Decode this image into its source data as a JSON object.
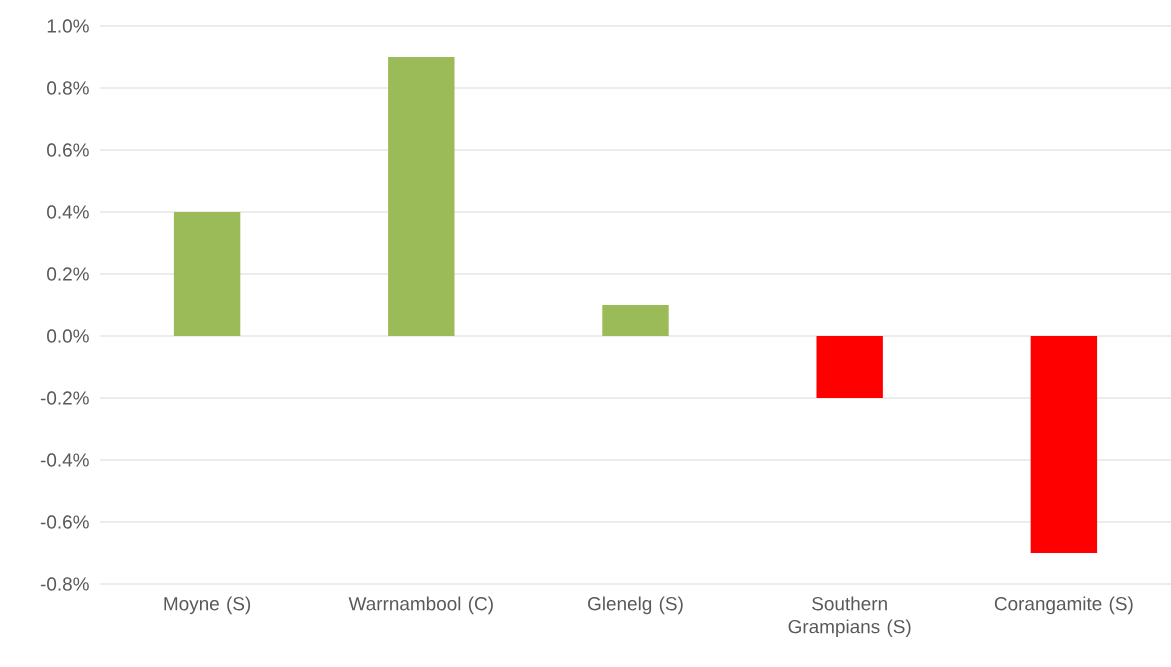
{
  "chart_data": {
    "type": "bar",
    "categories": [
      "Moyne (S)",
      "Warrnambool (C)",
      "Glenelg (S)",
      "Southern Grampians (S)",
      "Corangamite (S)"
    ],
    "values": [
      0.4,
      0.9,
      0.1,
      -0.2,
      -0.7
    ],
    "colors": [
      "#9bbb59",
      "#9bbb59",
      "#9bbb59",
      "#ff0000",
      "#ff0000"
    ],
    "ylim": [
      -0.8,
      1.0
    ],
    "yticks": [
      {
        "value": -0.8,
        "label": "-0.8%"
      },
      {
        "value": -0.6,
        "label": "-0.6%"
      },
      {
        "value": -0.4,
        "label": "-0.4%"
      },
      {
        "value": -0.2,
        "label": "-0.2%"
      },
      {
        "value": 0.0,
        "label": "0.0%"
      },
      {
        "value": 0.2,
        "label": "0.2%"
      },
      {
        "value": 0.4,
        "label": "0.4%"
      },
      {
        "value": 0.6,
        "label": "0.6%"
      },
      {
        "value": 0.8,
        "label": "0.8%"
      },
      {
        "value": 1.0,
        "label": "1.0%"
      }
    ],
    "grid": "y"
  }
}
